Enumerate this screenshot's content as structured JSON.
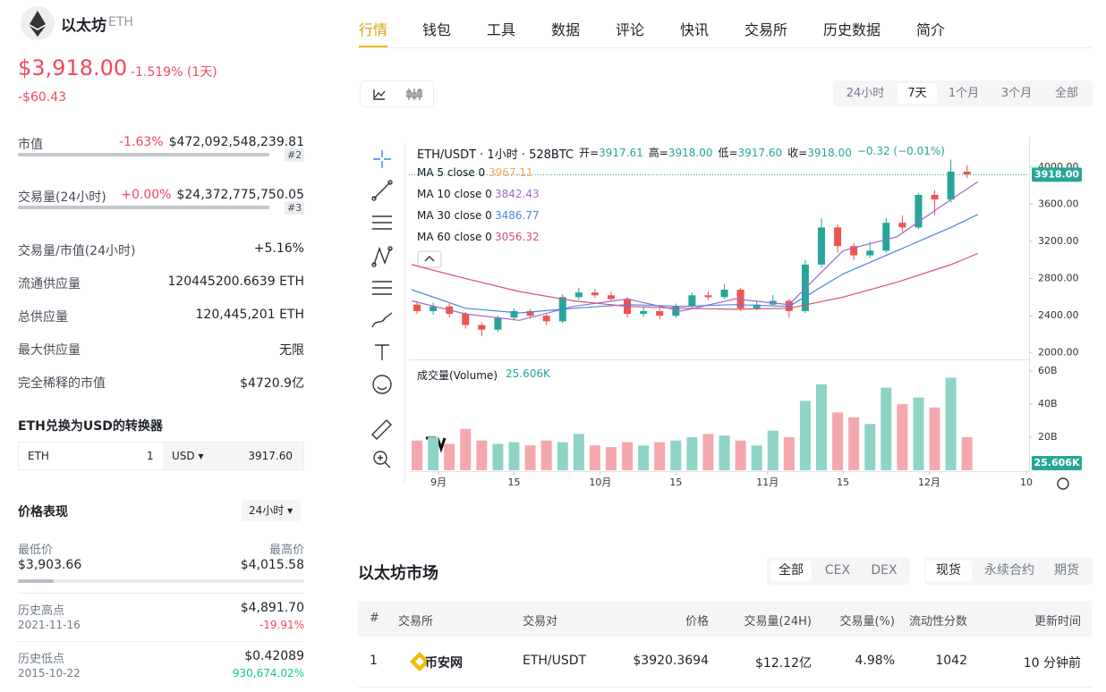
{
  "header": {
    "name": "以太坊",
    "symbol": "ETH",
    "price": "$3,918.00",
    "change": "-1.519% (1天)",
    "change_abs": "-$60.43"
  },
  "stats": [
    {
      "label": "市值",
      "change": "-1.63%",
      "value": "$472,092,548,239.81",
      "rank": "#2"
    },
    {
      "label": "交易量(24小时)",
      "change": "+0.00%",
      "value": "$24,372,775,750.05",
      "rank": "#3"
    },
    {
      "label": "交易量/市值(24小时)",
      "value": "+5.16%"
    },
    {
      "label": "流通供应量",
      "value": "120445200.6639 ETH"
    },
    {
      "label": "总供应量",
      "value": "120,445,201 ETH"
    },
    {
      "label": "最大供应量",
      "value": "无限"
    },
    {
      "label": "完全稀释的市值",
      "value": "$4720.9亿"
    }
  ],
  "converter": {
    "title": "ETH兑换为USD的转换器",
    "from": "ETH",
    "amount": "1",
    "to": "USD ▾",
    "result": "3917.60"
  },
  "performance": {
    "title": "价格表现",
    "period": "24小时 ▾",
    "low_label": "最低价",
    "low": "$3,903.66",
    "high_label": "最高价",
    "high": "$4,015.58",
    "ath_label": "历史高点",
    "ath_date": "2021-11-16",
    "ath": "$4,891.70",
    "ath_change": "-19.91%",
    "atl_label": "历史低点",
    "atl_date": "2015-10-22",
    "atl": "$0.42089",
    "atl_change": "930,674.02%"
  },
  "tabs": [
    "行情",
    "钱包",
    "工具",
    "数据",
    "评论",
    "快讯",
    "交易所",
    "历史数据",
    "简介"
  ],
  "ranges": [
    "24小时",
    "7天",
    "1个月",
    "3个月",
    "全部"
  ],
  "chart_data": {
    "type": "candlestick",
    "title": "ETH/USDT · 1小时 · 528BTC",
    "ohlc": [
      {
        "label": "开=",
        "value": "3917.61"
      },
      {
        "label": "高=",
        "value": "3918.00"
      },
      {
        "label": "低=",
        "value": "3917.60"
      },
      {
        "label": "收=",
        "value": "3918.00"
      }
    ],
    "ohlc_change": "−0.32 (−0.01%)",
    "x": [
      -4,
      -1,
      2,
      5,
      8,
      11,
      14,
      17,
      20,
      23,
      26,
      29,
      32,
      35,
      38,
      41,
      44,
      47,
      50,
      53,
      56,
      59,
      62,
      65,
      68,
      71,
      74,
      77,
      80,
      83,
      86,
      89,
      92,
      95,
      98
    ],
    "open": [
      2520,
      2450,
      2500,
      2420,
      2300,
      2250,
      2380,
      2450,
      2400,
      2340,
      2600,
      2650,
      2620,
      2580,
      2420,
      2450,
      2400,
      2500,
      2620,
      2600,
      2680,
      2480,
      2520,
      2560,
      2450,
      2950,
      3350,
      3150,
      3050,
      3100,
      3400,
      3350,
      3700,
      3650,
      3950
    ],
    "high": [
      2560,
      2540,
      2530,
      2440,
      2330,
      2400,
      2480,
      2470,
      2420,
      2630,
      2700,
      2690,
      2660,
      2600,
      2490,
      2480,
      2530,
      2650,
      2660,
      2740,
      2700,
      2560,
      2620,
      2580,
      3000,
      3450,
      3380,
      3180,
      3200,
      3450,
      3480,
      3720,
      3750,
      4080,
      4020
    ],
    "low": [
      2420,
      2410,
      2380,
      2260,
      2180,
      2230,
      2350,
      2370,
      2300,
      2320,
      2570,
      2590,
      2550,
      2380,
      2390,
      2360,
      2380,
      2480,
      2570,
      2580,
      2450,
      2460,
      2500,
      2380,
      2430,
      2920,
      3080,
      3000,
      3020,
      3080,
      3300,
      3330,
      3480,
      3620,
      3880
    ],
    "close": [
      2450,
      2500,
      2420,
      2300,
      2250,
      2380,
      2450,
      2400,
      2340,
      2600,
      2650,
      2620,
      2580,
      2420,
      2450,
      2400,
      2500,
      2620,
      2600,
      2680,
      2480,
      2520,
      2560,
      2450,
      2950,
      3350,
      3150,
      3050,
      3100,
      3400,
      3350,
      3700,
      3650,
      3950,
      3920
    ],
    "volume": [
      18,
      20,
      16,
      25,
      18,
      16,
      17,
      15,
      18,
      17,
      22,
      15,
      14,
      17,
      15,
      17,
      18,
      20,
      22,
      21,
      18,
      15,
      24,
      20,
      42,
      52,
      35,
      32,
      28,
      50,
      40,
      44,
      38,
      56,
      20
    ],
    "up_color": "#26a69a",
    "down_color": "#ef5350",
    "up_volume_color": "#8fd3c6",
    "down_volume_color": "#f4a8ad",
    "ma": [
      {
        "name": "MA 5 close 0",
        "value": "3967.11",
        "color": "#f0a860"
      },
      {
        "name": "MA 10 close 0",
        "value": "3842.43",
        "color": "#9c6ad0",
        "x": [
          -5,
          5,
          15,
          25,
          35,
          45,
          55,
          65,
          75,
          85,
          95,
          100
        ],
        "values": [
          2560,
          2420,
          2350,
          2500,
          2580,
          2450,
          2580,
          2520,
          3100,
          3250,
          3650,
          3840
        ]
      },
      {
        "name": "MA 30 close 0",
        "value": "3486.77",
        "color": "#4a86e0",
        "x": [
          -5,
          5,
          15,
          25,
          35,
          45,
          55,
          65,
          75,
          85,
          95,
          100
        ],
        "values": [
          2680,
          2480,
          2430,
          2480,
          2520,
          2500,
          2520,
          2500,
          2850,
          3100,
          3350,
          3490
        ]
      },
      {
        "name": "MA 60 close 0",
        "value": "3056.32",
        "color": "#d9506f",
        "x": [
          -5,
          5,
          15,
          25,
          35,
          45,
          55,
          65,
          75,
          85,
          95,
          100
        ],
        "values": [
          2950,
          2800,
          2660,
          2560,
          2500,
          2480,
          2470,
          2480,
          2600,
          2760,
          2950,
          3070
        ]
      }
    ],
    "volume_label": "成交量(Volume)",
    "volume_value": "25.606K",
    "xlim": [
      -5.5,
      109.5
    ],
    "xticks": [
      {
        "value": 0,
        "label": "9月"
      },
      {
        "value": 14,
        "label": "15"
      },
      {
        "value": 30,
        "label": "10月"
      },
      {
        "value": 44,
        "label": "15"
      },
      {
        "value": 61,
        "label": "11月"
      },
      {
        "value": 75,
        "label": "15"
      },
      {
        "value": 91,
        "label": "12月"
      },
      {
        "value": 109,
        "label": "10"
      }
    ],
    "ylim": [
      1930,
      4330
    ],
    "yticks": [
      {
        "value": 2000,
        "label": "2000.00"
      },
      {
        "value": 2400,
        "label": "2400.00"
      },
      {
        "value": 2800,
        "label": "2800.00"
      },
      {
        "value": 3200,
        "label": "3200.00"
      },
      {
        "value": 3600,
        "label": "3600.00"
      },
      {
        "value": 4000,
        "label": "4000.00"
      }
    ],
    "last_price": {
      "value": 3918,
      "label": "3918.00"
    },
    "volume_lim": [
      0,
      66
    ],
    "volume_ticks": [
      {
        "value": 20,
        "label": "20B"
      },
      {
        "value": 40,
        "label": "40B"
      },
      {
        "value": 60,
        "label": "60B"
      }
    ]
  },
  "market": {
    "title": "以太坊市场",
    "filters": [
      "全部",
      "CEX",
      "DEX"
    ],
    "kinds": [
      "现货",
      "永续合约",
      "期货"
    ],
    "columns": [
      "#",
      "交易所",
      "交易对",
      "价格",
      "交易量(24H)",
      "交易量(%)",
      "流动性分数",
      "更新时间"
    ],
    "rows": [
      [
        "1",
        "币安网",
        "ETH/USDT",
        "$3920.3694",
        "$12.12亿",
        "4.98%",
        "1042",
        "10 分钟前"
      ]
    ]
  }
}
